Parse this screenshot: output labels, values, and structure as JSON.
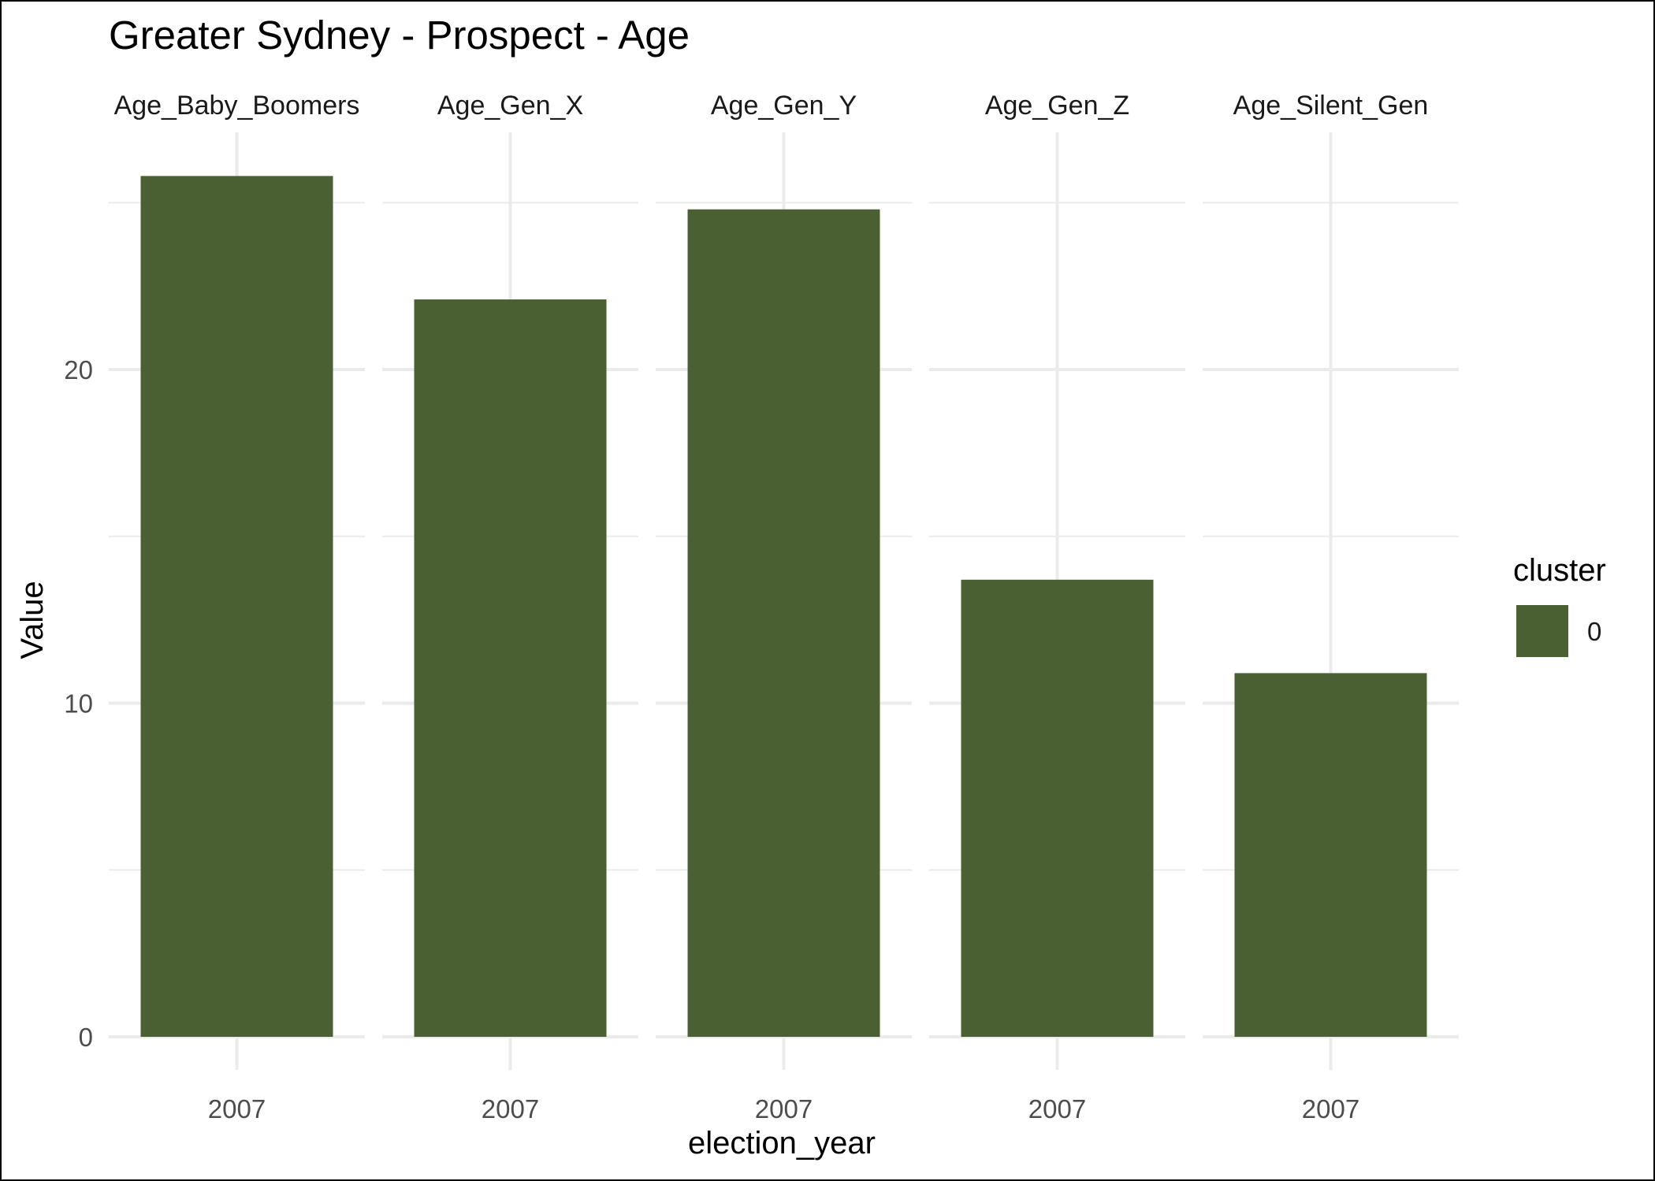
{
  "chart_data": {
    "type": "bar",
    "title": "Greater Sydney - Prospect - Age",
    "xlabel": "election_year",
    "ylabel": "Value",
    "ylim": [
      0,
      26.5
    ],
    "y_ticks": [
      0,
      10,
      20
    ],
    "facets": [
      {
        "label": "Age_Baby_Boomers",
        "category": "2007",
        "value": 25.8
      },
      {
        "label": "Age_Gen_X",
        "category": "2007",
        "value": 22.1
      },
      {
        "label": "Age_Gen_Y",
        "category": "2007",
        "value": 24.8
      },
      {
        "label": "Age_Gen_Z",
        "category": "2007",
        "value": 13.7
      },
      {
        "label": "Age_Silent_Gen",
        "category": "2007",
        "value": 10.9
      }
    ],
    "legend": {
      "title": "cluster",
      "entries": [
        {
          "label": "0",
          "color": "#4a6032"
        }
      ]
    },
    "grid": true,
    "legend_position": "right",
    "bar_color": "#4a6032",
    "grid_color": "#ebebeb"
  }
}
